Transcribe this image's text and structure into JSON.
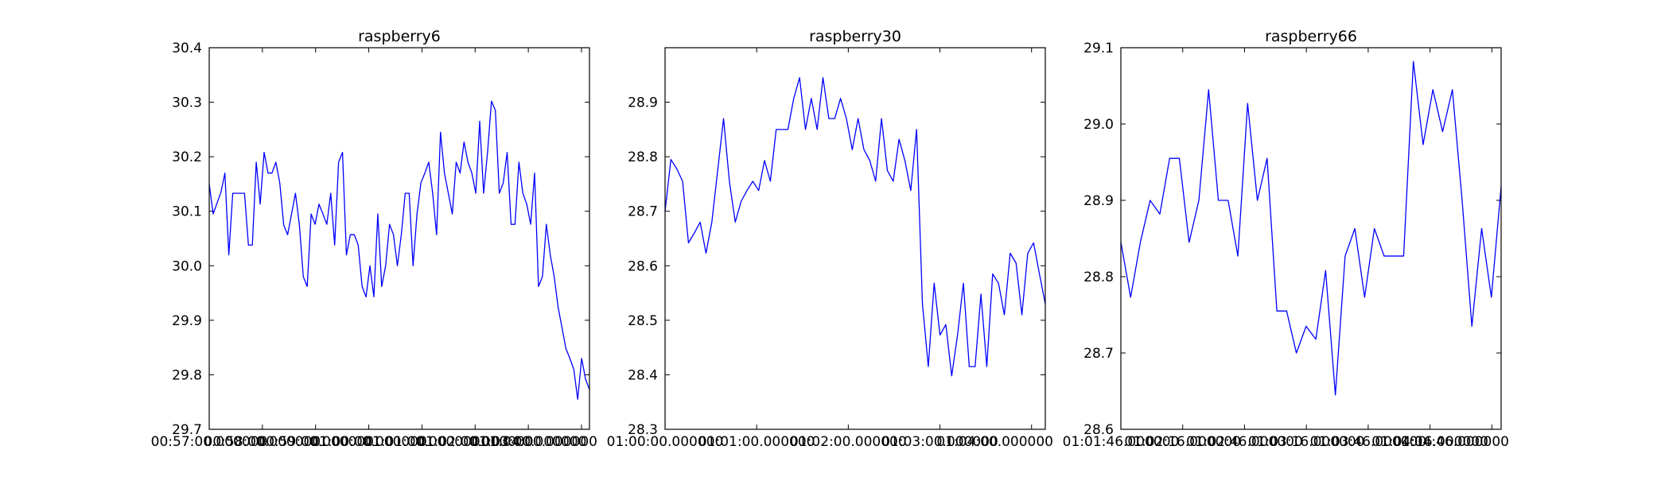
{
  "figure": {
    "background": "#ffffff",
    "line_color": "#0000ff"
  },
  "chart_data": [
    {
      "type": "line",
      "title": "raspberry6",
      "xlabel": "",
      "ylabel": "",
      "ylim": [
        29.7,
        30.4
      ],
      "yticks": [
        "29.7",
        "29.8",
        "29.9",
        "30.0",
        "30.1",
        "30.2",
        "30.3",
        "30.4"
      ],
      "xticks": [
        "00:57:00.000000",
        "00:58:00.000000",
        "00:59:00.000000",
        "01:00:00.000000",
        "01:01:00.000000",
        "01:02:00.000000",
        "01:03:00.000000",
        "01:04:00.000000"
      ],
      "grid": false,
      "legend": "none",
      "series": [
        {
          "color": "#0000ff",
          "values": [
            30.15,
            30.095,
            30.115,
            30.135,
            30.17,
            30.02,
            30.133,
            30.133,
            30.133,
            30.133,
            30.038,
            30.038,
            30.19,
            30.113,
            30.208,
            30.17,
            30.17,
            30.19,
            30.152,
            30.075,
            30.057,
            30.095,
            30.133,
            30.075,
            29.98,
            29.962,
            30.095,
            30.076,
            30.113,
            30.095,
            30.076,
            30.133,
            30.038,
            30.19,
            30.208,
            30.02,
            30.057,
            30.057,
            30.038,
            29.962,
            29.943,
            30.0,
            29.943,
            30.095,
            29.962,
            30.0,
            30.076,
            30.057,
            30.0,
            30.057,
            30.133,
            30.133,
            30.0,
            30.095,
            30.152,
            30.17,
            30.19,
            30.133,
            30.057,
            30.245,
            30.17,
            30.133,
            30.095,
            30.19,
            30.17,
            30.227,
            30.19,
            30.17,
            30.133,
            30.265,
            30.133,
            30.208,
            30.302,
            30.285,
            30.133,
            30.152,
            30.208,
            30.076,
            30.076,
            30.19,
            30.133,
            30.113,
            30.076,
            30.17,
            29.962,
            29.98,
            30.076,
            30.02,
            29.98,
            29.924,
            29.886,
            29.848,
            29.83,
            29.81,
            29.755,
            29.83,
            29.792,
            29.773
          ]
        }
      ]
    },
    {
      "type": "line",
      "title": "raspberry30",
      "xlabel": "",
      "ylabel": "",
      "ylim": [
        28.3,
        29.0
      ],
      "yticks": [
        "28.3",
        "28.4",
        "28.5",
        "28.6",
        "28.7",
        "28.8",
        "28.9"
      ],
      "xticks": [
        "01:00:00.000000",
        "01:01:00.000000",
        "01:02:00.000000",
        "01:03:00.000000",
        "01:04:00.000000"
      ],
      "grid": false,
      "legend": "none",
      "series": [
        {
          "color": "#0000ff",
          "values": [
            28.7,
            28.795,
            28.778,
            28.755,
            28.642,
            28.66,
            28.68,
            28.623,
            28.68,
            28.775,
            28.87,
            28.755,
            28.68,
            28.718,
            28.738,
            28.755,
            28.738,
            28.793,
            28.755,
            28.85,
            28.85,
            28.85,
            28.907,
            28.945,
            28.85,
            28.907,
            28.85,
            28.945,
            28.87,
            28.87,
            28.907,
            28.87,
            28.813,
            28.87,
            28.813,
            28.793,
            28.755,
            28.87,
            28.775,
            28.755,
            28.832,
            28.793,
            28.738,
            28.85,
            28.53,
            28.415,
            28.568,
            28.473,
            28.492,
            28.398,
            28.473,
            28.568,
            28.415,
            28.415,
            28.548,
            28.415,
            28.585,
            28.568,
            28.51,
            28.623,
            28.605,
            28.51,
            28.623,
            28.642,
            28.585,
            28.53
          ]
        }
      ]
    },
    {
      "type": "line",
      "title": "raspberry66",
      "xlabel": "",
      "ylabel": "",
      "ylim": [
        28.6,
        29.1
      ],
      "yticks": [
        "28.6",
        "28.7",
        "28.8",
        "28.9",
        "29.0",
        "29.1"
      ],
      "xticks": [
        "01:01:46.000000",
        "01:02:16.000000",
        "01:02:46.000000",
        "01:03:16.000000",
        "01:03:46.000000",
        "01:04:16.000000",
        "01:04:46.000000"
      ],
      "grid": false,
      "legend": "none",
      "series": [
        {
          "color": "#0000ff",
          "values": [
            28.845,
            28.773,
            28.845,
            28.9,
            28.882,
            28.955,
            28.955,
            28.845,
            28.9,
            29.045,
            28.9,
            28.9,
            28.827,
            29.027,
            28.9,
            28.955,
            28.755,
            28.755,
            28.7,
            28.735,
            28.718,
            28.808,
            28.645,
            28.827,
            28.863,
            28.773,
            28.863,
            28.827,
            28.827,
            28.827,
            29.082,
            28.973,
            29.045,
            28.99,
            29.045,
            28.9,
            28.735,
            28.863,
            28.773,
            28.918
          ]
        }
      ]
    }
  ]
}
